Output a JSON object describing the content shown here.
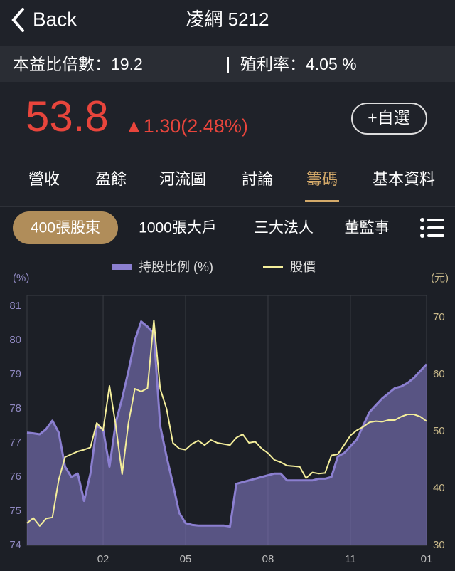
{
  "header": {
    "back": "Back",
    "title": "凌網 5212"
  },
  "info": {
    "pe": "本益比倍數：19.2",
    "yield": "殖利率：4.05 %"
  },
  "quote": {
    "price": "53.8",
    "change": "▲1.30(2.48%)",
    "watch": "+自選"
  },
  "tabs": [
    "營收",
    "盈餘",
    "河流圖",
    "討論",
    "籌碼",
    "基本資料"
  ],
  "active_tab": 4,
  "subtabs": [
    "400張股東",
    "1000張大戶",
    "三大法人",
    "董監事"
  ],
  "active_subtab": 0,
  "chart_data": {
    "type": "line",
    "y_label": "(%)",
    "y2_label": "(元)",
    "categories": [
      null,
      null,
      null,
      null,
      null,
      null,
      null,
      null,
      null,
      null,
      null,
      null,
      "02",
      null,
      null,
      null,
      null,
      null,
      null,
      null,
      null,
      null,
      null,
      null,
      null,
      "05",
      null,
      null,
      null,
      null,
      null,
      null,
      null,
      null,
      null,
      null,
      null,
      null,
      "08",
      null,
      null,
      null,
      null,
      null,
      null,
      null,
      null,
      null,
      null,
      null,
      null,
      "11",
      null,
      null,
      null,
      null,
      null,
      null,
      null,
      null,
      null,
      null,
      null,
      "01"
    ],
    "series": [
      {
        "name": "持股比例 (%)",
        "color": "#8b7fd0",
        "fill": true,
        "values": [
          77.3,
          77.28,
          77.25,
          77.4,
          77.65,
          77.3,
          76.3,
          76.0,
          76.1,
          75.3,
          76.1,
          77.5,
          77.4,
          76.3,
          77.6,
          78.3,
          79.1,
          80.0,
          80.55,
          80.4,
          80.2,
          77.5,
          76.6,
          75.8,
          74.95,
          74.65,
          74.6,
          74.58,
          74.58,
          74.58,
          74.58,
          74.58,
          74.55,
          75.8,
          75.85,
          75.9,
          75.95,
          76.0,
          76.05,
          76.1,
          76.1,
          75.9,
          75.9,
          75.9,
          75.9,
          75.9,
          75.95,
          75.95,
          76.0,
          76.6,
          76.7,
          76.9,
          77.1,
          77.5,
          77.9,
          78.1,
          78.3,
          78.45,
          78.6,
          78.65,
          78.75,
          78.9,
          79.1,
          79.3
        ]
      },
      {
        "name": "股價",
        "color": "#f4ee9b",
        "axis": "y2",
        "values": [
          33.9,
          34.8,
          33.4,
          34.7,
          34.9,
          41.5,
          45.5,
          46.0,
          46.5,
          46.8,
          47.2,
          51.5,
          50.2,
          58.0,
          51.0,
          42.5,
          51.5,
          57.5,
          57.0,
          57.6,
          69.5,
          57.5,
          54.0,
          48.0,
          47.0,
          46.8,
          47.8,
          48.4,
          47.6,
          48.5,
          48.0,
          47.8,
          47.6,
          48.9,
          49.5,
          48.0,
          48.2,
          47.0,
          46.2,
          45.0,
          44.6,
          44.0,
          43.9,
          43.8,
          41.8,
          42.8,
          42.6,
          42.7,
          45.8,
          46.0,
          47.6,
          49.3,
          50.2,
          50.8,
          51.6,
          51.8,
          51.7,
          52.0,
          52.0,
          52.6,
          53.0,
          53.0,
          52.6,
          51.8
        ]
      }
    ],
    "ylim": [
      74,
      81
    ],
    "yticks": [
      74,
      75,
      76,
      77,
      78,
      79,
      80,
      81
    ],
    "y2lim": [
      30,
      72
    ],
    "y2ticks": [
      30,
      40,
      50,
      60,
      70
    ],
    "grid": true
  }
}
